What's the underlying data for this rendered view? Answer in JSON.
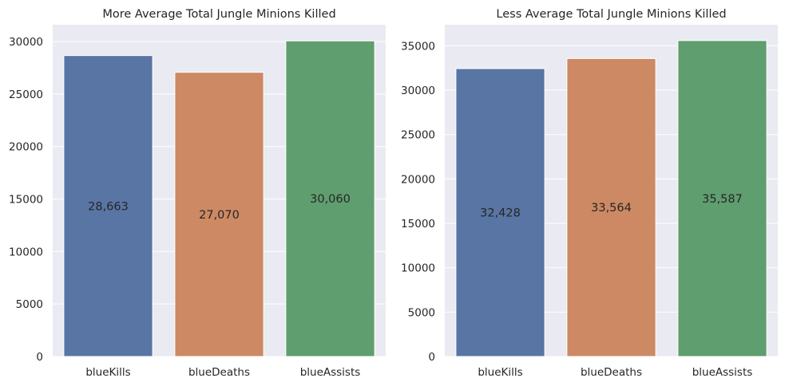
{
  "style": {
    "background": "#ffffff",
    "plot_bg": "#eaeaf2",
    "grid_color": "#ffffff",
    "bar_colors": [
      "#5875a4",
      "#cc8963",
      "#5f9e6e"
    ]
  },
  "chart_data": [
    {
      "type": "bar",
      "title": "More Average Total Jungle Minions Killed",
      "categories": [
        "blueKills",
        "blueDeaths",
        "blueAssists"
      ],
      "values": [
        28663,
        27070,
        30060
      ],
      "value_labels": [
        "28,663",
        "27,070",
        "30,060"
      ],
      "ylim": [
        0,
        31600
      ],
      "yticks": [
        0,
        5000,
        10000,
        15000,
        20000,
        25000,
        30000
      ],
      "ytick_labels": [
        "0",
        "5000",
        "10000",
        "15000",
        "20000",
        "25000",
        "30000"
      ],
      "xlabel": "",
      "ylabel": "",
      "grid": true,
      "legend": false
    },
    {
      "type": "bar",
      "title": "Less Average Total Jungle Minions Killed",
      "categories": [
        "blueKills",
        "blueDeaths",
        "blueAssists"
      ],
      "values": [
        32428,
        33564,
        35587
      ],
      "value_labels": [
        "32,428",
        "33,564",
        "35,587"
      ],
      "ylim": [
        0,
        37370
      ],
      "yticks": [
        0,
        5000,
        10000,
        15000,
        20000,
        25000,
        30000,
        35000
      ],
      "ytick_labels": [
        "0",
        "5000",
        "10000",
        "15000",
        "20000",
        "25000",
        "30000",
        "35000"
      ],
      "xlabel": "",
      "ylabel": "",
      "grid": true,
      "legend": false
    }
  ]
}
